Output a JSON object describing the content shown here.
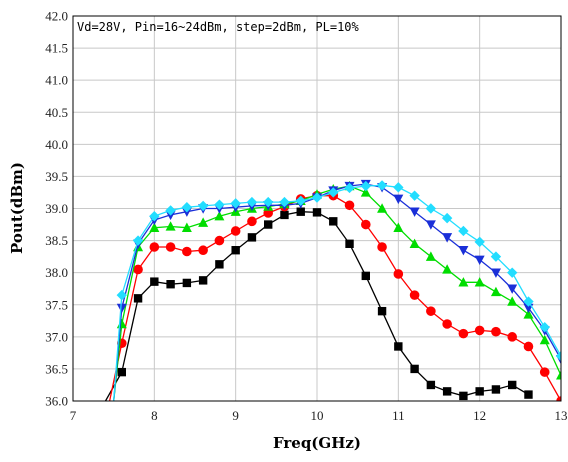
{
  "chart_data": {
    "type": "line",
    "title": "",
    "annotation": "Vd=28V, Pin=16~24dBm, step=2dBm, PL=10%",
    "xlabel": "Freq(GHz)",
    "ylabel": "Pout(dBm)",
    "xlim": [
      7,
      13
    ],
    "ylim": [
      36.0,
      42.0
    ],
    "xticks": [
      "7",
      "8",
      "9",
      "10",
      "11",
      "12",
      "13"
    ],
    "yticks": [
      "36.0",
      "36.5",
      "37.0",
      "37.5",
      "38.0",
      "38.5",
      "39.0",
      "39.5",
      "40.0",
      "40.5",
      "41.0",
      "41.5",
      "42.0"
    ],
    "grid": true,
    "legend": "none",
    "series": [
      {
        "color": "#000000",
        "marker": "square",
        "x": [
          7.4,
          7.6,
          7.8,
          8.0,
          8.2,
          8.4,
          8.6,
          8.8,
          9.0,
          9.2,
          9.4,
          9.6,
          9.8,
          10.0,
          10.2,
          10.4,
          10.6,
          10.8,
          11.0,
          11.2,
          11.4,
          11.6,
          11.8,
          12.0,
          12.2,
          12.4,
          12.6
        ],
        "y": [
          36.0,
          36.45,
          37.6,
          37.86,
          37.82,
          37.84,
          37.88,
          38.13,
          38.35,
          38.55,
          38.75,
          38.9,
          38.95,
          38.94,
          38.8,
          38.45,
          37.95,
          37.4,
          36.85,
          36.5,
          36.25,
          36.15,
          36.08,
          36.15,
          36.18,
          36.25,
          36.1
        ]
      },
      {
        "color": "#ff0000",
        "marker": "circle",
        "x": [
          7.45,
          7.6,
          7.8,
          8.0,
          8.2,
          8.4,
          8.6,
          8.8,
          9.0,
          9.2,
          9.4,
          9.6,
          9.8,
          10.0,
          10.2,
          10.4,
          10.6,
          10.8,
          11.0,
          11.2,
          11.4,
          11.6,
          11.8,
          12.0,
          12.2,
          12.4,
          12.6,
          12.8,
          13.0
        ],
        "y": [
          36.0,
          36.9,
          38.05,
          38.4,
          38.4,
          38.33,
          38.35,
          38.5,
          38.65,
          38.8,
          38.93,
          39.03,
          39.15,
          39.2,
          39.2,
          39.05,
          38.75,
          38.4,
          37.98,
          37.65,
          37.4,
          37.2,
          37.05,
          37.1,
          37.08,
          37.0,
          36.85,
          36.45,
          36.0
        ]
      },
      {
        "color": "#00dd00",
        "marker": "triangle-up",
        "x": [
          7.5,
          7.6,
          7.8,
          8.0,
          8.2,
          8.4,
          8.6,
          8.8,
          9.0,
          9.2,
          9.4,
          9.6,
          9.8,
          10.0,
          10.2,
          10.4,
          10.6,
          10.8,
          11.0,
          11.2,
          11.4,
          11.6,
          11.8,
          12.0,
          12.2,
          12.4,
          12.6,
          12.8,
          13.0
        ],
        "y": [
          36.0,
          37.2,
          38.4,
          38.7,
          38.72,
          38.7,
          38.78,
          38.88,
          38.95,
          39.0,
          39.03,
          39.07,
          39.12,
          39.22,
          39.3,
          39.35,
          39.25,
          39.0,
          38.7,
          38.45,
          38.25,
          38.05,
          37.85,
          37.85,
          37.7,
          37.55,
          37.35,
          36.95,
          36.4
        ]
      },
      {
        "color": "#1a2fd8",
        "marker": "triangle-down",
        "x": [
          7.5,
          7.6,
          7.8,
          8.0,
          8.2,
          8.4,
          8.6,
          8.8,
          9.0,
          9.2,
          9.4,
          9.6,
          9.8,
          10.0,
          10.2,
          10.4,
          10.6,
          10.8,
          11.0,
          11.2,
          11.4,
          11.6,
          11.8,
          12.0,
          12.2,
          12.4,
          12.6,
          12.8,
          13.0
        ],
        "y": [
          36.0,
          37.45,
          38.45,
          38.82,
          38.9,
          38.95,
          39.0,
          39.0,
          39.02,
          39.04,
          39.05,
          39.05,
          39.08,
          39.17,
          39.28,
          39.35,
          39.38,
          39.33,
          39.15,
          38.95,
          38.75,
          38.55,
          38.35,
          38.2,
          38.0,
          37.75,
          37.45,
          37.1,
          36.65
        ]
      },
      {
        "color": "#22ddff",
        "marker": "diamond",
        "x": [
          7.5,
          7.6,
          7.8,
          8.0,
          8.2,
          8.4,
          8.6,
          8.8,
          9.0,
          9.2,
          9.4,
          9.6,
          9.8,
          10.0,
          10.2,
          10.4,
          10.6,
          10.8,
          11.0,
          11.2,
          11.4,
          11.6,
          11.8,
          12.0,
          12.2,
          12.4,
          12.6,
          12.8,
          13.0
        ],
        "y": [
          36.0,
          37.65,
          38.5,
          38.88,
          38.97,
          39.02,
          39.04,
          39.06,
          39.08,
          39.1,
          39.1,
          39.1,
          39.12,
          39.17,
          39.25,
          39.32,
          39.35,
          39.36,
          39.33,
          39.2,
          39.0,
          38.85,
          38.65,
          38.48,
          38.25,
          38.0,
          37.55,
          37.15,
          36.7
        ]
      }
    ]
  }
}
